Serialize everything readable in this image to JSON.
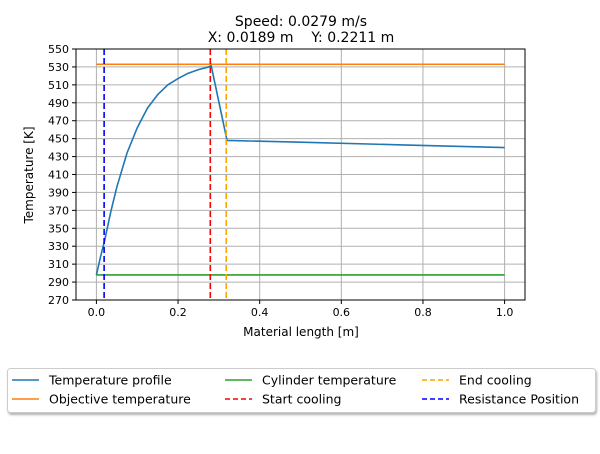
{
  "chart_data": {
    "type": "line",
    "title": [
      "Speed: 0.0279 m/s",
      "X: 0.0189 m    Y: 0.2211 m"
    ],
    "xlabel": "Material length [m]",
    "ylabel": "Temperature [K]",
    "xlim": [
      -0.05,
      1.05
    ],
    "ylim": [
      270,
      550
    ],
    "xticks": [
      0.0,
      0.2,
      0.4,
      0.6,
      0.8,
      1.0
    ],
    "xtick_labels": [
      "0.0",
      "0.2",
      "0.4",
      "0.6",
      "0.8",
      "1.0"
    ],
    "yticks": [
      270,
      290,
      310,
      330,
      350,
      370,
      390,
      410,
      430,
      450,
      470,
      490,
      510,
      530,
      550
    ],
    "grid": true,
    "legend_placement": "below",
    "series": [
      {
        "name": "Temperature profile",
        "color": "#1f77b4",
        "style": "solid",
        "x": [
          0,
          0.01,
          0.02,
          0.035,
          0.05,
          0.075,
          0.1,
          0.125,
          0.15,
          0.175,
          0.2,
          0.225,
          0.25,
          0.275,
          0.279,
          0.28,
          0.32,
          0.5,
          0.75,
          1.0
        ],
        "y": [
          298,
          318,
          336,
          368,
          396,
          434,
          462,
          484,
          499,
          510,
          517,
          523,
          527,
          530,
          531,
          534,
          448,
          446,
          443,
          440
        ]
      },
      {
        "name": "Objective temperature",
        "color": "#ff7f0e",
        "style": "solid",
        "x": [
          0,
          1.0
        ],
        "y": [
          533,
          533
        ]
      },
      {
        "name": "Cylinder temperature",
        "color": "#2ca02c",
        "style": "solid",
        "x": [
          0,
          1.0
        ],
        "y": [
          298,
          298
        ]
      },
      {
        "name": "Start cooling",
        "color": "#ff0000",
        "style": "dashed",
        "vline": 0.279
      },
      {
        "name": "End cooling",
        "color": "#ffa500",
        "style": "dashed",
        "vline": 0.318
      },
      {
        "name": "Resistance Position",
        "color": "#0000ff",
        "style": "dashed",
        "vline": 0.0189
      }
    ]
  }
}
